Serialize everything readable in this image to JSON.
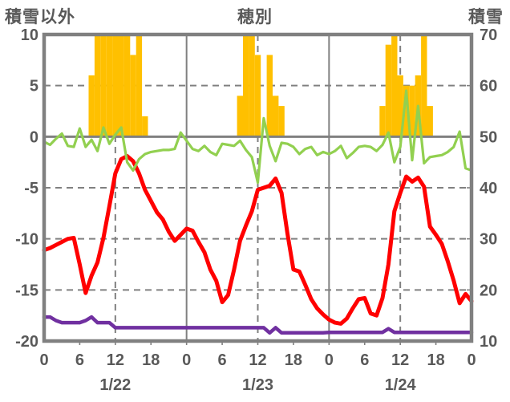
{
  "header": {
    "left_axis_title": "積雪以外",
    "chart_title": "穂別",
    "right_axis_title": "積雪"
  },
  "colors": {
    "bar": "#FFC000",
    "line_red": "#FF0000",
    "line_green": "#92D050",
    "line_purple": "#7030A0",
    "axis_gray": "#808080",
    "text_gray": "#595959"
  },
  "chart_data": {
    "type": "combo (hourly bars + 3 line series, dual y-axis)",
    "title": "穂別",
    "left_axis": {
      "title": "積雪以外",
      "ticks": [
        10,
        5,
        0,
        -5,
        -10,
        -15,
        -20
      ],
      "range": [
        -20,
        10
      ]
    },
    "right_axis": {
      "title": "積雪",
      "ticks": [
        70,
        60,
        50,
        40,
        30,
        20,
        10
      ],
      "range": [
        10,
        70
      ]
    },
    "x_axis": {
      "hours_range": [
        0,
        72
      ],
      "tick_step_hours": 6,
      "hour_tick_labels": [
        "0",
        "6",
        "12",
        "18",
        "0",
        "6",
        "12",
        "18",
        "0",
        "6",
        "12",
        "18",
        "0"
      ],
      "date_labels": [
        "1/22",
        "1/23",
        "1/24"
      ],
      "solid_gridlines_at_hours": [
        24,
        48
      ],
      "dashed_gridlines_at_hours": [
        12,
        36,
        60
      ]
    },
    "dashed_hgridlines_at_left_values": [
      5,
      -5,
      -10,
      -15
    ],
    "solid_zero_line_left_value": 0,
    "series": [
      {
        "name": "bar_series_orange",
        "type": "bar",
        "axis": "left",
        "points_hour_value": [
          [
            8,
            6
          ],
          [
            9,
            10
          ],
          [
            10,
            10
          ],
          [
            11,
            10
          ],
          [
            12,
            10
          ],
          [
            13,
            10
          ],
          [
            14,
            10
          ],
          [
            15,
            8
          ],
          [
            16,
            10
          ],
          [
            17,
            2
          ],
          [
            33,
            4
          ],
          [
            34,
            10
          ],
          [
            35,
            10
          ],
          [
            36,
            8
          ],
          [
            38,
            8
          ],
          [
            39,
            4
          ],
          [
            40,
            3
          ],
          [
            57,
            3
          ],
          [
            58,
            9
          ],
          [
            59,
            10
          ],
          [
            60,
            6
          ],
          [
            61,
            5
          ],
          [
            62,
            5
          ],
          [
            63,
            6
          ],
          [
            64,
            10
          ],
          [
            65,
            3
          ]
        ]
      },
      {
        "name": "line_red",
        "type": "line",
        "axis": "left",
        "hourly_values": [
          -11.1,
          -10.9,
          -10.6,
          -10.3,
          -10.0,
          -9.9,
          -12.5,
          -15.3,
          -13.6,
          -12.3,
          -9.9,
          -6.8,
          -3.6,
          -2.2,
          -1.9,
          -2.4,
          -3.6,
          -5.2,
          -6.3,
          -7.4,
          -8.1,
          -9.3,
          -10.2,
          -9.6,
          -9.0,
          -9.2,
          -10.3,
          -11.3,
          -13.0,
          -14.1,
          -16.2,
          -15.5,
          -13.0,
          -10.2,
          -8.7,
          -7.3,
          -5.2,
          -5.0,
          -4.8,
          -4.1,
          -5.5,
          -9.5,
          -13.0,
          -13.2,
          -14.5,
          -15.9,
          -16.8,
          -17.4,
          -17.9,
          -18.2,
          -18.3,
          -17.8,
          -16.8,
          -15.9,
          -15.8,
          -17.3,
          -17.5,
          -15.8,
          -12.5,
          -7.3,
          -5.5,
          -3.9,
          -4.4,
          -4.0,
          -4.9,
          -8.8,
          -9.6,
          -10.5,
          -12.2,
          -14.1,
          -16.3,
          -15.4,
          -16.1
        ]
      },
      {
        "name": "line_green",
        "type": "line",
        "axis": "left",
        "hourly_values": [
          -0.5,
          -0.8,
          -0.2,
          0.3,
          -0.9,
          -1.0,
          0.8,
          -1.0,
          -0.3,
          -1.4,
          0.9,
          -0.7,
          0.2,
          0.9,
          -2.5,
          -3.3,
          -2.2,
          -1.7,
          -1.5,
          -1.4,
          -1.3,
          -1.3,
          -1.2,
          0.4,
          -0.4,
          -1.2,
          -1.4,
          -0.9,
          -1.5,
          -1.8,
          -0.7,
          -0.8,
          -0.9,
          -0.4,
          -1.3,
          -2.0,
          -4.5,
          1.8,
          -0.9,
          -2.4,
          -0.6,
          -0.7,
          -1.0,
          -1.7,
          -1.2,
          -1.0,
          -1.8,
          -1.5,
          -1.7,
          -1.4,
          -0.9,
          -2.1,
          -1.6,
          -1.0,
          -0.9,
          -1.0,
          -1.4,
          -0.8,
          0.4,
          -2.5,
          -1.0,
          4.5,
          -2.3,
          3.0,
          -2.6,
          -2.0,
          -1.9,
          -1.8,
          -1.5,
          -1.0,
          0.5,
          -3.1,
          -3.3
        ]
      },
      {
        "name": "line_purple",
        "type": "line",
        "axis": "right",
        "hourly_values": [
          14.7,
          14.7,
          14.0,
          13.6,
          13.6,
          13.6,
          13.6,
          14.0,
          14.7,
          13.6,
          13.6,
          13.6,
          12.6,
          12.6,
          12.6,
          12.6,
          12.6,
          12.6,
          12.6,
          12.6,
          12.6,
          12.6,
          12.6,
          12.6,
          12.6,
          12.6,
          12.6,
          12.6,
          12.6,
          12.6,
          12.6,
          12.6,
          12.6,
          12.6,
          12.6,
          12.6,
          12.6,
          12.6,
          11.6,
          12.6,
          11.6,
          11.6,
          11.6,
          11.6,
          11.6,
          11.6,
          11.6,
          11.6,
          11.7,
          11.7,
          11.7,
          11.7,
          11.7,
          11.7,
          11.7,
          11.7,
          11.7,
          11.7,
          12.4,
          11.7,
          11.7,
          11.7,
          11.7,
          11.7,
          11.7,
          11.7,
          11.7,
          11.7,
          11.7,
          11.7,
          11.7,
          11.7,
          11.7
        ]
      }
    ],
    "legend": "none"
  }
}
